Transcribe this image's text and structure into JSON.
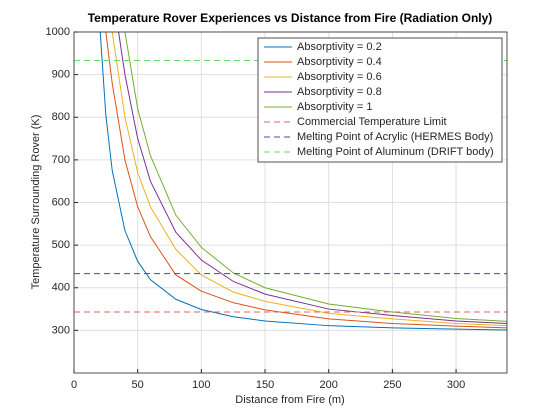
{
  "chart_data": {
    "type": "line",
    "title": "Temperature Rover Experiences vs Distance from Fire (Radiation Only)",
    "x_label": "Distance from Fire (m)",
    "y_label": "Temperature Surrounding Rover (K)",
    "xlim": [
      0,
      340
    ],
    "xticks": [
      0,
      50,
      100,
      150,
      200,
      250,
      300
    ],
    "ylim": [
      200,
      1000
    ],
    "yticks": [
      300,
      400,
      500,
      600,
      700,
      800,
      900,
      1000
    ],
    "grid": true,
    "legend": "top-right",
    "series": [
      {
        "name": "Absorptivity = 0.2",
        "color": "#0072bd",
        "x": [
          20,
          25,
          30,
          40,
          50,
          60,
          80,
          100,
          125,
          150,
          200,
          250,
          300,
          340
        ],
        "values": [
          1025,
          805,
          675,
          534,
          462,
          419,
          373,
          349,
          332,
          322,
          311,
          306,
          303,
          301
        ]
      },
      {
        "name": "Absorptivity = 0.4",
        "color": "#d95319",
        "x": [
          25,
          30,
          40,
          50,
          60,
          80,
          100,
          125,
          150,
          200,
          250,
          300,
          340
        ],
        "values": [
          1000,
          880,
          700,
          590,
          520,
          430,
          392,
          365,
          348,
          327,
          316,
          310,
          306
        ]
      },
      {
        "name": "Absorptivity = 0.6",
        "color": "#edb120",
        "x": [
          30,
          40,
          50,
          60,
          80,
          100,
          125,
          150,
          200,
          250,
          300,
          340
        ],
        "values": [
          1000,
          800,
          670,
          590,
          490,
          430,
          390,
          368,
          340,
          327,
          316,
          311
        ]
      },
      {
        "name": "Absorptivity = 0.8",
        "color": "#7e2f8e",
        "x": [
          35,
          40,
          50,
          60,
          80,
          100,
          125,
          150,
          200,
          250,
          300,
          340
        ],
        "values": [
          1000,
          900,
          750,
          650,
          530,
          465,
          415,
          385,
          350,
          335,
          322,
          316
        ]
      },
      {
        "name": "Absorptivity = 1",
        "color": "#77ac30",
        "x": [
          40,
          50,
          60,
          80,
          100,
          125,
          150,
          200,
          250,
          300,
          340
        ],
        "values": [
          1000,
          820,
          710,
          570,
          495,
          435,
          400,
          362,
          343,
          328,
          321
        ]
      },
      {
        "name": "Commercial Temperature Limit",
        "color": "#e06666",
        "dashed": true,
        "value": 343
      },
      {
        "name": "Melting Point of Acrylic (HERMES Body)",
        "color": "#4444bb",
        "dashed": true,
        "value": 433
      },
      {
        "name": "Melting Point of Aluminum (DRIFT body)",
        "color": "#66dd66",
        "dashed": true,
        "value": 933
      }
    ]
  }
}
